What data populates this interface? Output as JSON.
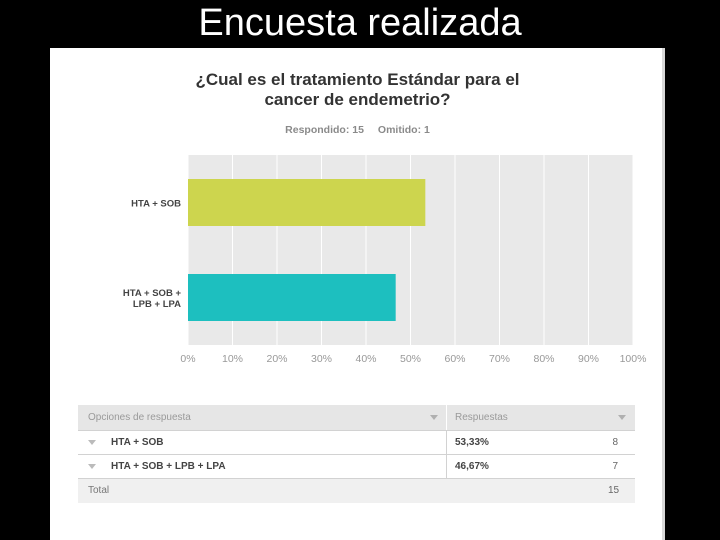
{
  "slide": {
    "title": "Encuesta realizada"
  },
  "survey": {
    "question_line1": "¿Cual es el tratamiento Estándar para el",
    "question_line2": "cancer de endemetrio?",
    "answered_label": "Respondido: 15",
    "skipped_label": "Omitido: 1"
  },
  "chart_data": {
    "type": "bar",
    "orientation": "horizontal",
    "title": "¿Cual es el tratamiento Estándar para el cancer de endemetrio?",
    "categories": [
      "HTA + SOB",
      "HTA + SOB + LPB + LPA"
    ],
    "category_labels": [
      [
        "HTA + SOB"
      ],
      [
        "HTA + SOB +",
        "LPB + LPA"
      ]
    ],
    "values": [
      53.33,
      46.67
    ],
    "colors": [
      "#cdd54e",
      "#1dbfbf"
    ],
    "xlim": [
      0,
      100
    ],
    "xticks": [
      "0%",
      "10%",
      "20%",
      "30%",
      "40%",
      "50%",
      "60%",
      "70%",
      "80%",
      "90%",
      "100%"
    ],
    "grid": true,
    "background": "#e9e9e9"
  },
  "table": {
    "headers": {
      "option": "Opciones de respuesta",
      "responses": "Respuestas"
    },
    "rows": [
      {
        "label": "HTA + SOB",
        "percent": "53,33%",
        "count": "8"
      },
      {
        "label": "HTA + SOB + LPB + LPA",
        "percent": "46,67%",
        "count": "7"
      }
    ],
    "total_label": "Total",
    "total_count": "15"
  }
}
